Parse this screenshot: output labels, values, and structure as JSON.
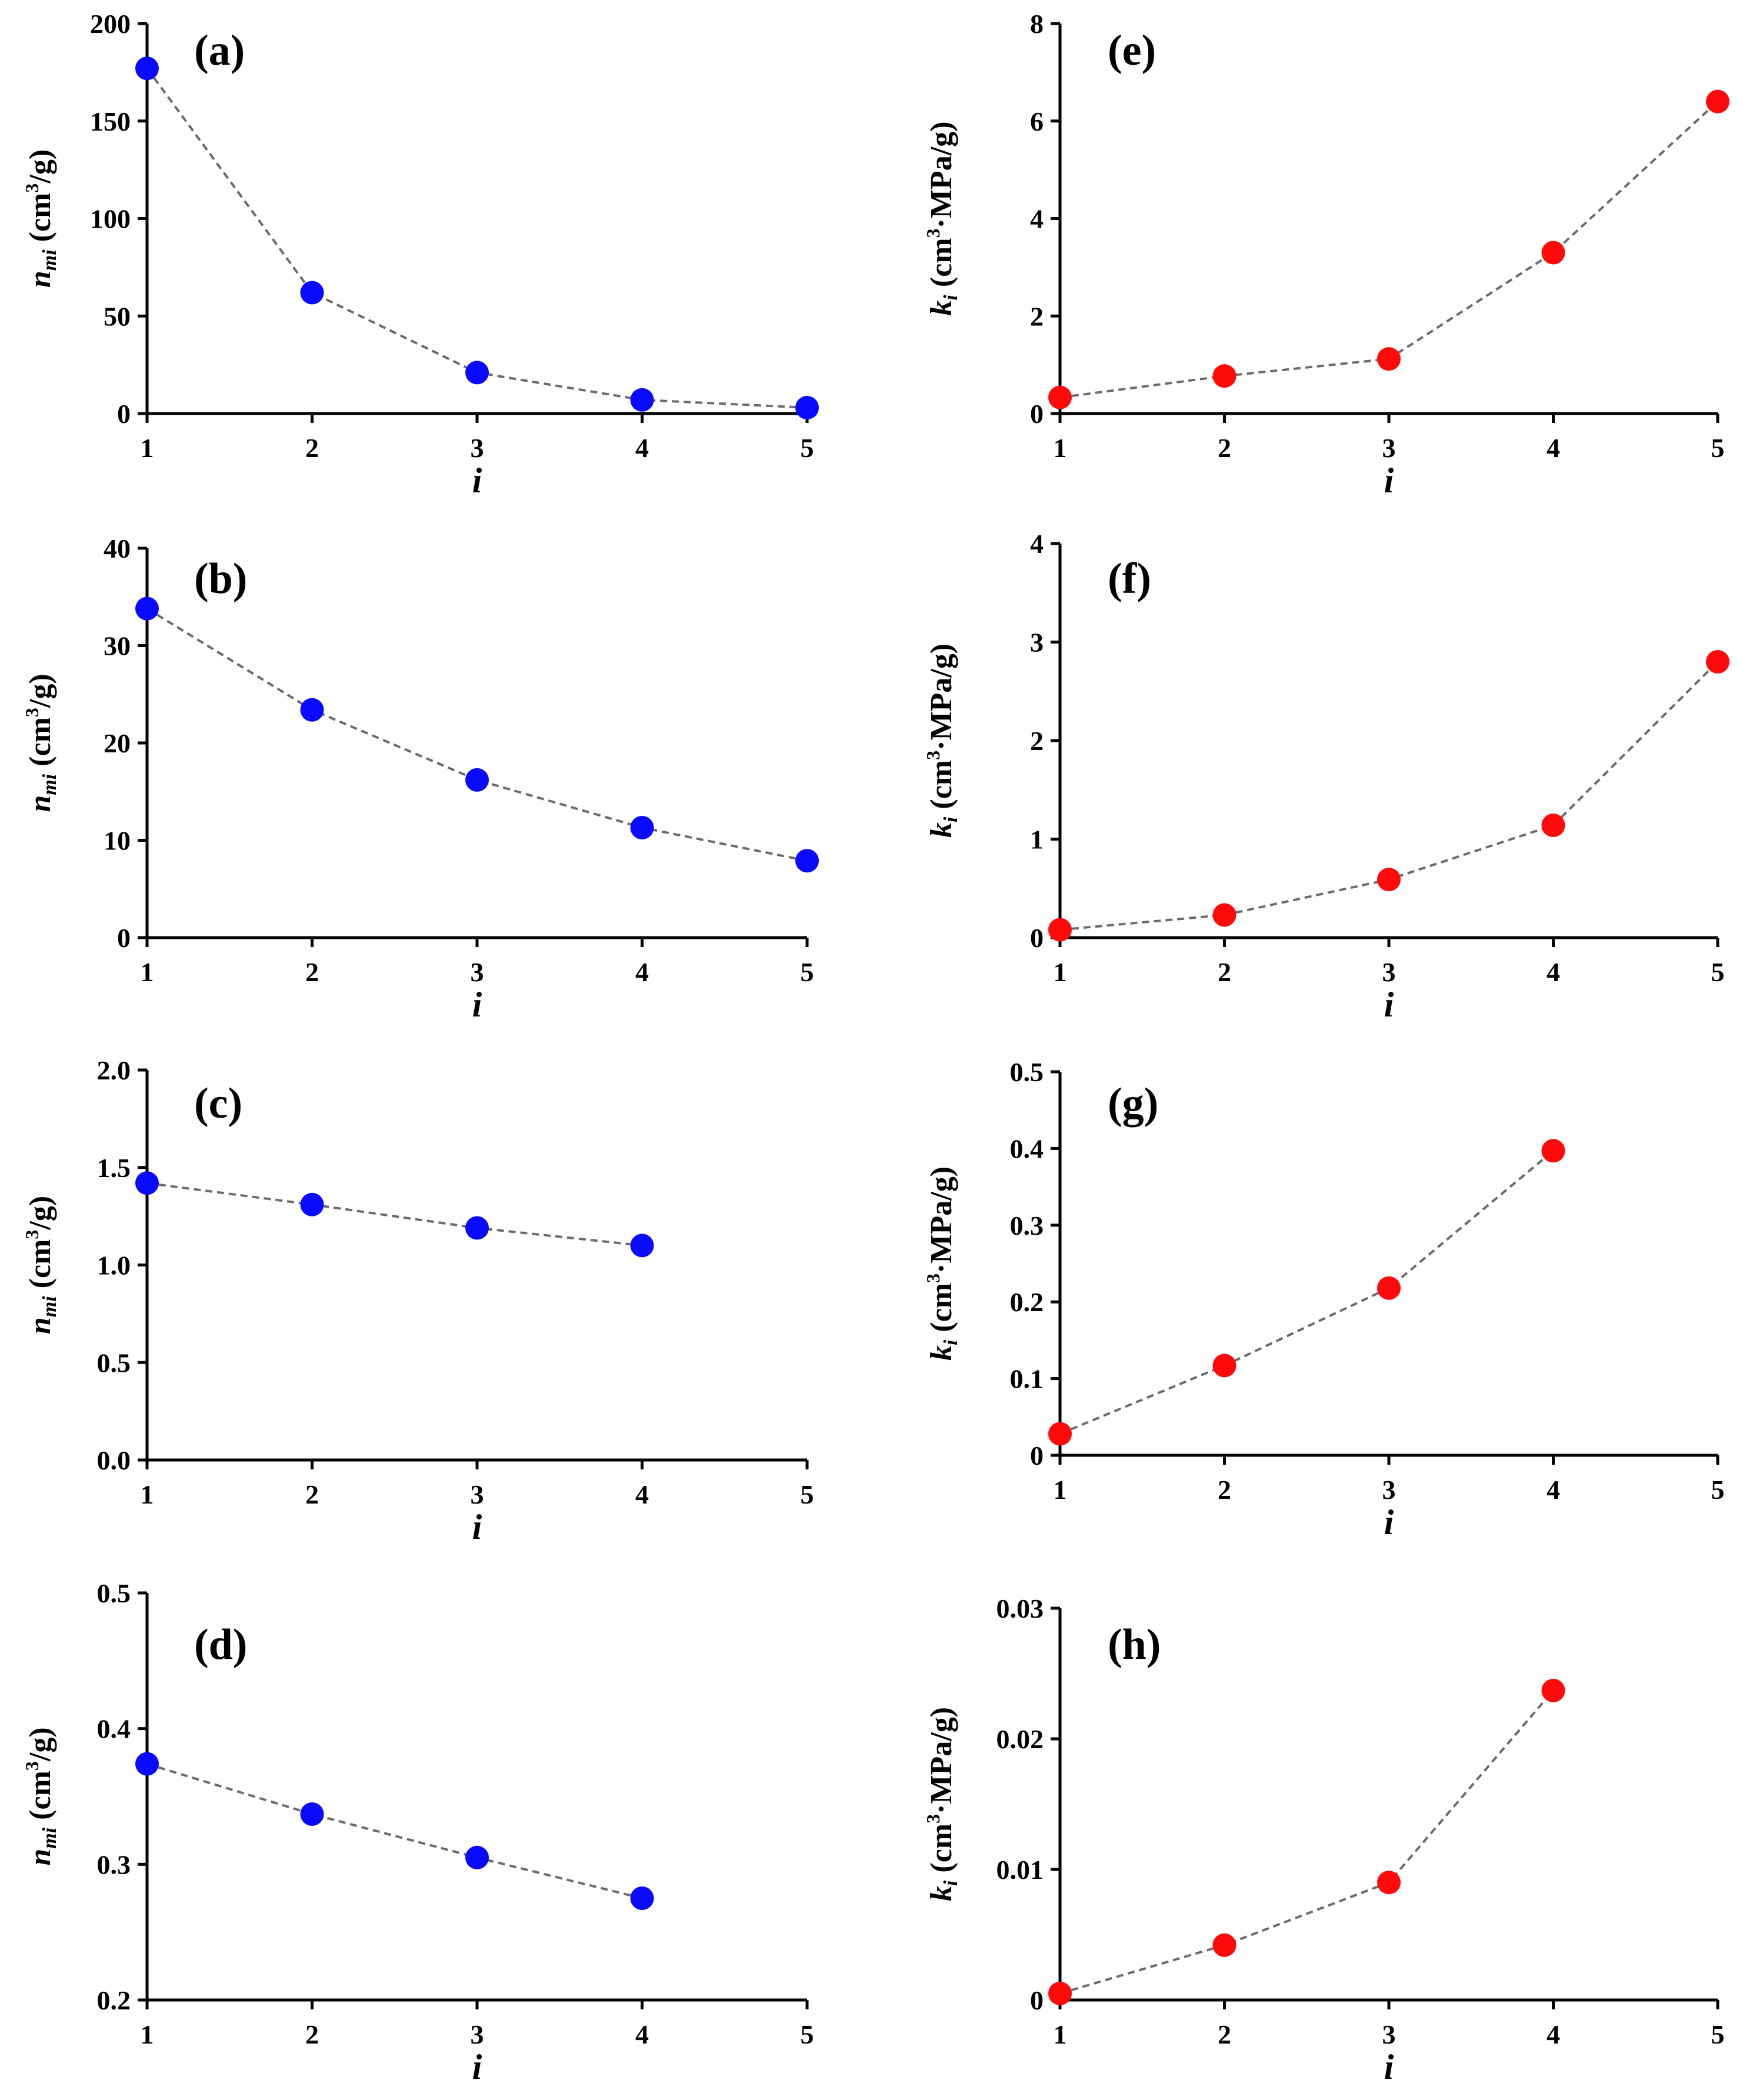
{
  "chart_data": [
    {
      "id": "a",
      "panel_label": "(a)",
      "type": "line",
      "x": [
        1,
        2,
        3,
        4,
        5
      ],
      "values": [
        177,
        62,
        21,
        7,
        3
      ],
      "xlim": [
        1,
        5
      ],
      "ylim": [
        0,
        200
      ],
      "yticks": [
        0,
        50,
        100,
        150,
        200
      ],
      "ytick_labels": [
        "0",
        "50",
        "100",
        "150",
        "200"
      ],
      "xticks": [
        1,
        2,
        3,
        4,
        5
      ],
      "xtick_labels": [
        "1",
        "2",
        "3",
        "4",
        "5"
      ],
      "xlabel": "i",
      "ylabel": {
        "main": "n",
        "sub": "mi",
        "unit_pre": " (cm",
        "sup": "3",
        "unit_post": "/g)"
      },
      "marker_color": "#0a0aff"
    },
    {
      "id": "b",
      "panel_label": "(b)",
      "type": "line",
      "x": [
        1,
        2,
        3,
        4,
        5
      ],
      "values": [
        33.8,
        23.4,
        16.2,
        11.3,
        7.9
      ],
      "xlim": [
        1,
        5
      ],
      "ylim": [
        0,
        40
      ],
      "yticks": [
        0,
        10,
        20,
        30,
        40
      ],
      "ytick_labels": [
        "0",
        "10",
        "20",
        "30",
        "40"
      ],
      "xticks": [
        1,
        2,
        3,
        4,
        5
      ],
      "xtick_labels": [
        "1",
        "2",
        "3",
        "4",
        "5"
      ],
      "xlabel": "i",
      "ylabel": {
        "main": "n",
        "sub": "mi",
        "unit_pre": " (cm",
        "sup": "3",
        "unit_post": "/g)"
      },
      "marker_color": "#0a0aff"
    },
    {
      "id": "c",
      "panel_label": "(c)",
      "type": "line",
      "x": [
        1,
        2,
        3,
        4
      ],
      "values": [
        1.42,
        1.31,
        1.19,
        1.1
      ],
      "xlim": [
        1,
        5
      ],
      "ylim": [
        0,
        2
      ],
      "yticks": [
        0,
        0.5,
        1,
        1.5,
        2
      ],
      "ytick_labels": [
        "0.0",
        "0.5",
        "1.0",
        "1.5",
        "2.0"
      ],
      "xticks": [
        1,
        2,
        3,
        4,
        5
      ],
      "xtick_labels": [
        "1",
        "2",
        "3",
        "4",
        "5"
      ],
      "xlabel": "i",
      "ylabel": {
        "main": "n",
        "sub": "mi",
        "unit_pre": " (cm",
        "sup": "3",
        "unit_post": "/g)"
      },
      "marker_color": "#0a0aff"
    },
    {
      "id": "d",
      "panel_label": "(d)",
      "type": "line",
      "x": [
        1,
        2,
        3,
        4
      ],
      "values": [
        0.374,
        0.337,
        0.305,
        0.275
      ],
      "xlim": [
        1,
        5
      ],
      "ylim": [
        0.2,
        0.5
      ],
      "yticks": [
        0.2,
        0.3,
        0.4,
        0.5
      ],
      "ytick_labels": [
        "0.2",
        "0.3",
        "0.4",
        "0.5"
      ],
      "xticks": [
        1,
        2,
        3,
        4,
        5
      ],
      "xtick_labels": [
        "1",
        "2",
        "3",
        "4",
        "5"
      ],
      "xlabel": "i",
      "ylabel": {
        "main": "n",
        "sub": "mi",
        "unit_pre": " (cm",
        "sup": "3",
        "unit_post": "/g)"
      },
      "marker_color": "#0a0aff"
    },
    {
      "id": "e",
      "panel_label": "(e)",
      "type": "line",
      "x": [
        1,
        2,
        3,
        4,
        5
      ],
      "values": [
        0.33,
        0.77,
        1.12,
        3.3,
        6.4
      ],
      "xlim": [
        1,
        5
      ],
      "ylim": [
        0,
        8
      ],
      "yticks": [
        0,
        2,
        4,
        6,
        8
      ],
      "ytick_labels": [
        "0",
        "2",
        "4",
        "6",
        "8"
      ],
      "xticks": [
        1,
        2,
        3,
        4,
        5
      ],
      "xtick_labels": [
        "1",
        "2",
        "3",
        "4",
        "5"
      ],
      "xlabel": "i",
      "ylabel": {
        "main": "k",
        "sub": "i",
        "unit_pre": " (cm",
        "sup": "3",
        "unit_post": "·MPa/g)"
      },
      "marker_color": "#ff0a0a"
    },
    {
      "id": "f",
      "panel_label": "(f)",
      "type": "line",
      "x": [
        1,
        2,
        3,
        4,
        5
      ],
      "values": [
        0.08,
        0.23,
        0.59,
        1.14,
        2.8
      ],
      "xlim": [
        1,
        5
      ],
      "ylim": [
        0,
        4
      ],
      "yticks": [
        0,
        1,
        2,
        3,
        4
      ],
      "ytick_labels": [
        "0",
        "1",
        "2",
        "3",
        "4"
      ],
      "xticks": [
        1,
        2,
        3,
        4,
        5
      ],
      "xtick_labels": [
        "1",
        "2",
        "3",
        "4",
        "5"
      ],
      "xlabel": "i",
      "ylabel": {
        "main": "k",
        "sub": "i",
        "unit_pre": " (cm",
        "sup": "3",
        "unit_post": "·MPa/g)"
      },
      "marker_color": "#ff0a0a"
    },
    {
      "id": "g",
      "panel_label": "(g)",
      "type": "line",
      "x": [
        1,
        2,
        3,
        4
      ],
      "values": [
        0.028,
        0.117,
        0.218,
        0.397
      ],
      "xlim": [
        1,
        5
      ],
      "ylim": [
        0,
        0.5
      ],
      "yticks": [
        0,
        0.1,
        0.2,
        0.3,
        0.4,
        0.5
      ],
      "ytick_labels": [
        "0",
        "0.1",
        "0.2",
        "0.3",
        "0.4",
        "0.5"
      ],
      "xticks": [
        1,
        2,
        3,
        4,
        5
      ],
      "xtick_labels": [
        "1",
        "2",
        "3",
        "4",
        "5"
      ],
      "xlabel": "i",
      "ylabel": {
        "main": "k",
        "sub": "i",
        "unit_pre": " (cm",
        "sup": "3",
        "unit_post": "·MPa/g)"
      },
      "marker_color": "#ff0a0a"
    },
    {
      "id": "h",
      "panel_label": "(h)",
      "type": "line",
      "x": [
        1,
        2,
        3,
        4
      ],
      "values": [
        0.0005,
        0.0042,
        0.009,
        0.0237
      ],
      "xlim": [
        1,
        5
      ],
      "ylim": [
        0,
        0.03
      ],
      "yticks": [
        0,
        0.01,
        0.02,
        0.03
      ],
      "ytick_labels": [
        "0",
        "0.01",
        "0.02",
        "0.03"
      ],
      "xticks": [
        1,
        2,
        3,
        4,
        5
      ],
      "xtick_labels": [
        "1",
        "2",
        "3",
        "4",
        "5"
      ],
      "xlabel": "i",
      "ylabel": {
        "main": "k",
        "sub": "i",
        "unit_pre": " (cm",
        "sup": "3",
        "unit_post": "·MPa/g)"
      },
      "marker_color": "#ff0a0a"
    }
  ]
}
